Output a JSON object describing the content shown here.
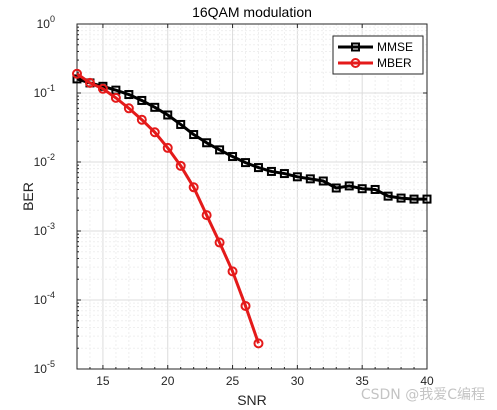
{
  "chart_data": {
    "type": "line",
    "title": "16QAM modulation",
    "xlabel": "SNR",
    "ylabel": "BER",
    "xlim": [
      13,
      40
    ],
    "ylim": [
      1e-05,
      1
    ],
    "yscale": "log",
    "x_ticks": [
      15,
      20,
      25,
      30,
      35,
      40
    ],
    "y_ticks": [
      {
        "value": 1,
        "base": "10",
        "exp": "0"
      },
      {
        "value": 0.1,
        "base": "10",
        "exp": "-1"
      },
      {
        "value": 0.01,
        "base": "10",
        "exp": "-2"
      },
      {
        "value": 0.001,
        "base": "10",
        "exp": "-3"
      },
      {
        "value": 0.0001,
        "base": "10",
        "exp": "-4"
      },
      {
        "value": 1e-05,
        "base": "10",
        "exp": "-5"
      }
    ],
    "grid": true,
    "minor_grid": true,
    "legend_position": "top-right",
    "series": [
      {
        "name": "MMSE",
        "color": "#000000",
        "marker": "square",
        "x": [
          13,
          14,
          15,
          16,
          17,
          18,
          19,
          20,
          21,
          22,
          23,
          24,
          25,
          26,
          27,
          28,
          29,
          30,
          31,
          32,
          33,
          34,
          35,
          36,
          37,
          38,
          39,
          40
        ],
        "y": [
          0.16,
          0.14,
          0.125,
          0.11,
          0.095,
          0.078,
          0.062,
          0.048,
          0.035,
          0.025,
          0.019,
          0.015,
          0.012,
          0.0098,
          0.0083,
          0.0073,
          0.0068,
          0.0061,
          0.0057,
          0.0053,
          0.0042,
          0.0045,
          0.0041,
          0.004,
          0.0032,
          0.003,
          0.0029,
          0.0029
        ]
      },
      {
        "name": "MBER",
        "color": "#e41a1a",
        "marker": "circle",
        "x": [
          13,
          14,
          15,
          16,
          17,
          18,
          19,
          20,
          21,
          22,
          23,
          24,
          25,
          26,
          27
        ],
        "y": [
          0.19,
          0.14,
          0.115,
          0.085,
          0.06,
          0.041,
          0.027,
          0.016,
          0.0088,
          0.0043,
          0.0017,
          0.00068,
          0.00026,
          8.2e-05,
          2.35e-05
        ]
      }
    ]
  },
  "watermark": "CSDN @我爱C编程"
}
